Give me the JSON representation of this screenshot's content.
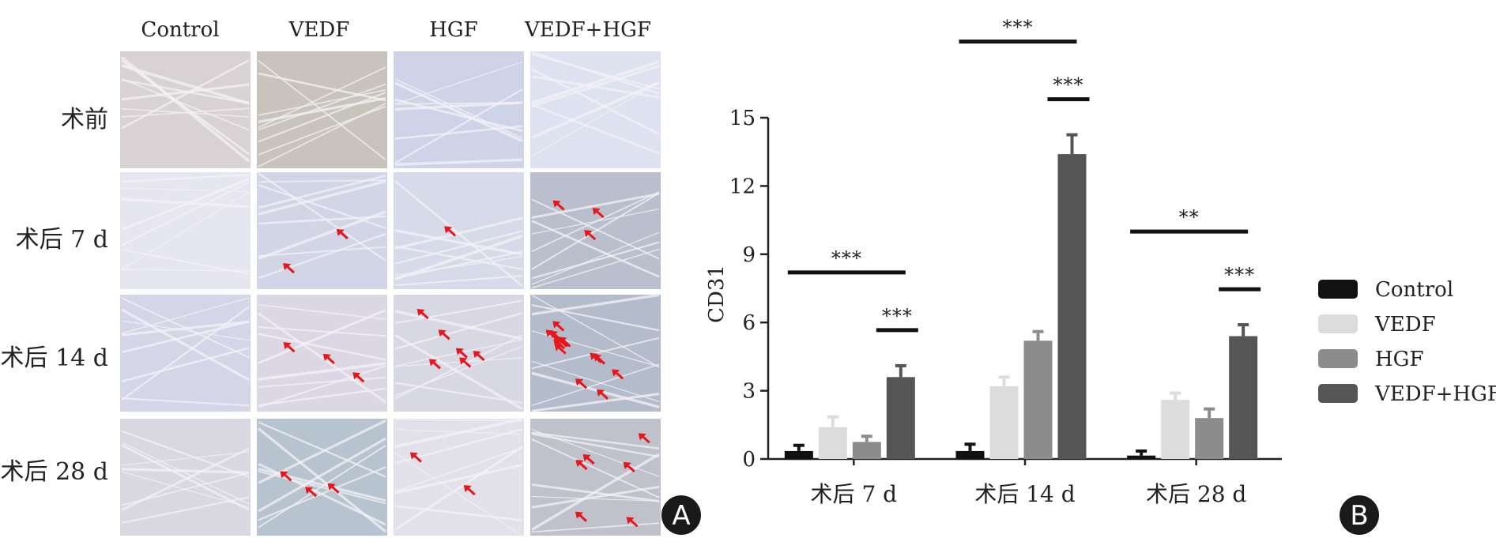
{
  "panel_a": {
    "label": "A",
    "columns": [
      "Control",
      "VEDF",
      "HGF",
      "VEDF+HGF"
    ],
    "rows": [
      "术前",
      "术后 7 d",
      "术后 14 d",
      "术后 28 d"
    ],
    "tiles": [
      {
        "tint": "#d9d2d4",
        "arrows": 0
      },
      {
        "tint": "#c9c3bd",
        "arrows": 0
      },
      {
        "tint": "#cfd3e8",
        "arrows": 0
      },
      {
        "tint": "#dde1f0",
        "arrows": 0
      },
      {
        "tint": "#e6e6f1",
        "arrows": 0
      },
      {
        "tint": "#d2d5e6",
        "arrows": 2
      },
      {
        "tint": "#d7dbe9",
        "arrows": 1
      },
      {
        "tint": "#b9bfcc",
        "arrows": 3
      },
      {
        "tint": "#d4d6e8",
        "arrows": 0
      },
      {
        "tint": "#dcd7e4",
        "arrows": 3
      },
      {
        "tint": "#d8d8e4",
        "arrows": 6
      },
      {
        "tint": "#b4bccc",
        "arrows": 13
      },
      {
        "tint": "#d9d7df",
        "arrows": 0
      },
      {
        "tint": "#b7c3cf",
        "arrows": 3
      },
      {
        "tint": "#e2e1ea",
        "arrows": 2
      },
      {
        "tint": "#bfc1cb",
        "arrows": 6
      }
    ],
    "arrow_color": "#e8151a"
  },
  "chart_data": {
    "label": "B",
    "type": "bar",
    "categories": [
      "术后 7 d",
      "术后 14 d",
      "术后 28 d"
    ],
    "ylabel": "CD31",
    "xlabel": "",
    "ylim": [
      0,
      15
    ],
    "yticks": [
      0,
      3,
      6,
      9,
      12,
      15
    ],
    "grid": false,
    "legend_position": "right",
    "series": [
      {
        "name": "Control",
        "color": "#111111",
        "values": [
          0.35,
          0.35,
          0.15
        ],
        "errors": [
          0.25,
          0.3,
          0.2
        ]
      },
      {
        "name": "VEDF",
        "color": "#dcdcdc",
        "values": [
          1.4,
          3.2,
          2.6
        ],
        "errors": [
          0.45,
          0.4,
          0.3
        ]
      },
      {
        "name": "HGF",
        "color": "#8c8c8c",
        "values": [
          0.75,
          5.2,
          1.8
        ],
        "errors": [
          0.25,
          0.4,
          0.4
        ]
      },
      {
        "name": "VEDF+HGF",
        "color": "#555555",
        "values": [
          3.6,
          13.4,
          5.4
        ],
        "errors": [
          0.5,
          0.85,
          0.5
        ]
      }
    ],
    "significance": [
      {
        "category": 0,
        "text": "***",
        "level": "upper"
      },
      {
        "category": 0,
        "text": "***",
        "level": "lower"
      },
      {
        "category": 1,
        "text": "***",
        "level": "upper"
      },
      {
        "category": 1,
        "text": "***",
        "level": "lower"
      },
      {
        "category": 2,
        "text": "**",
        "level": "upper"
      },
      {
        "category": 2,
        "text": "***",
        "level": "lower"
      }
    ]
  }
}
